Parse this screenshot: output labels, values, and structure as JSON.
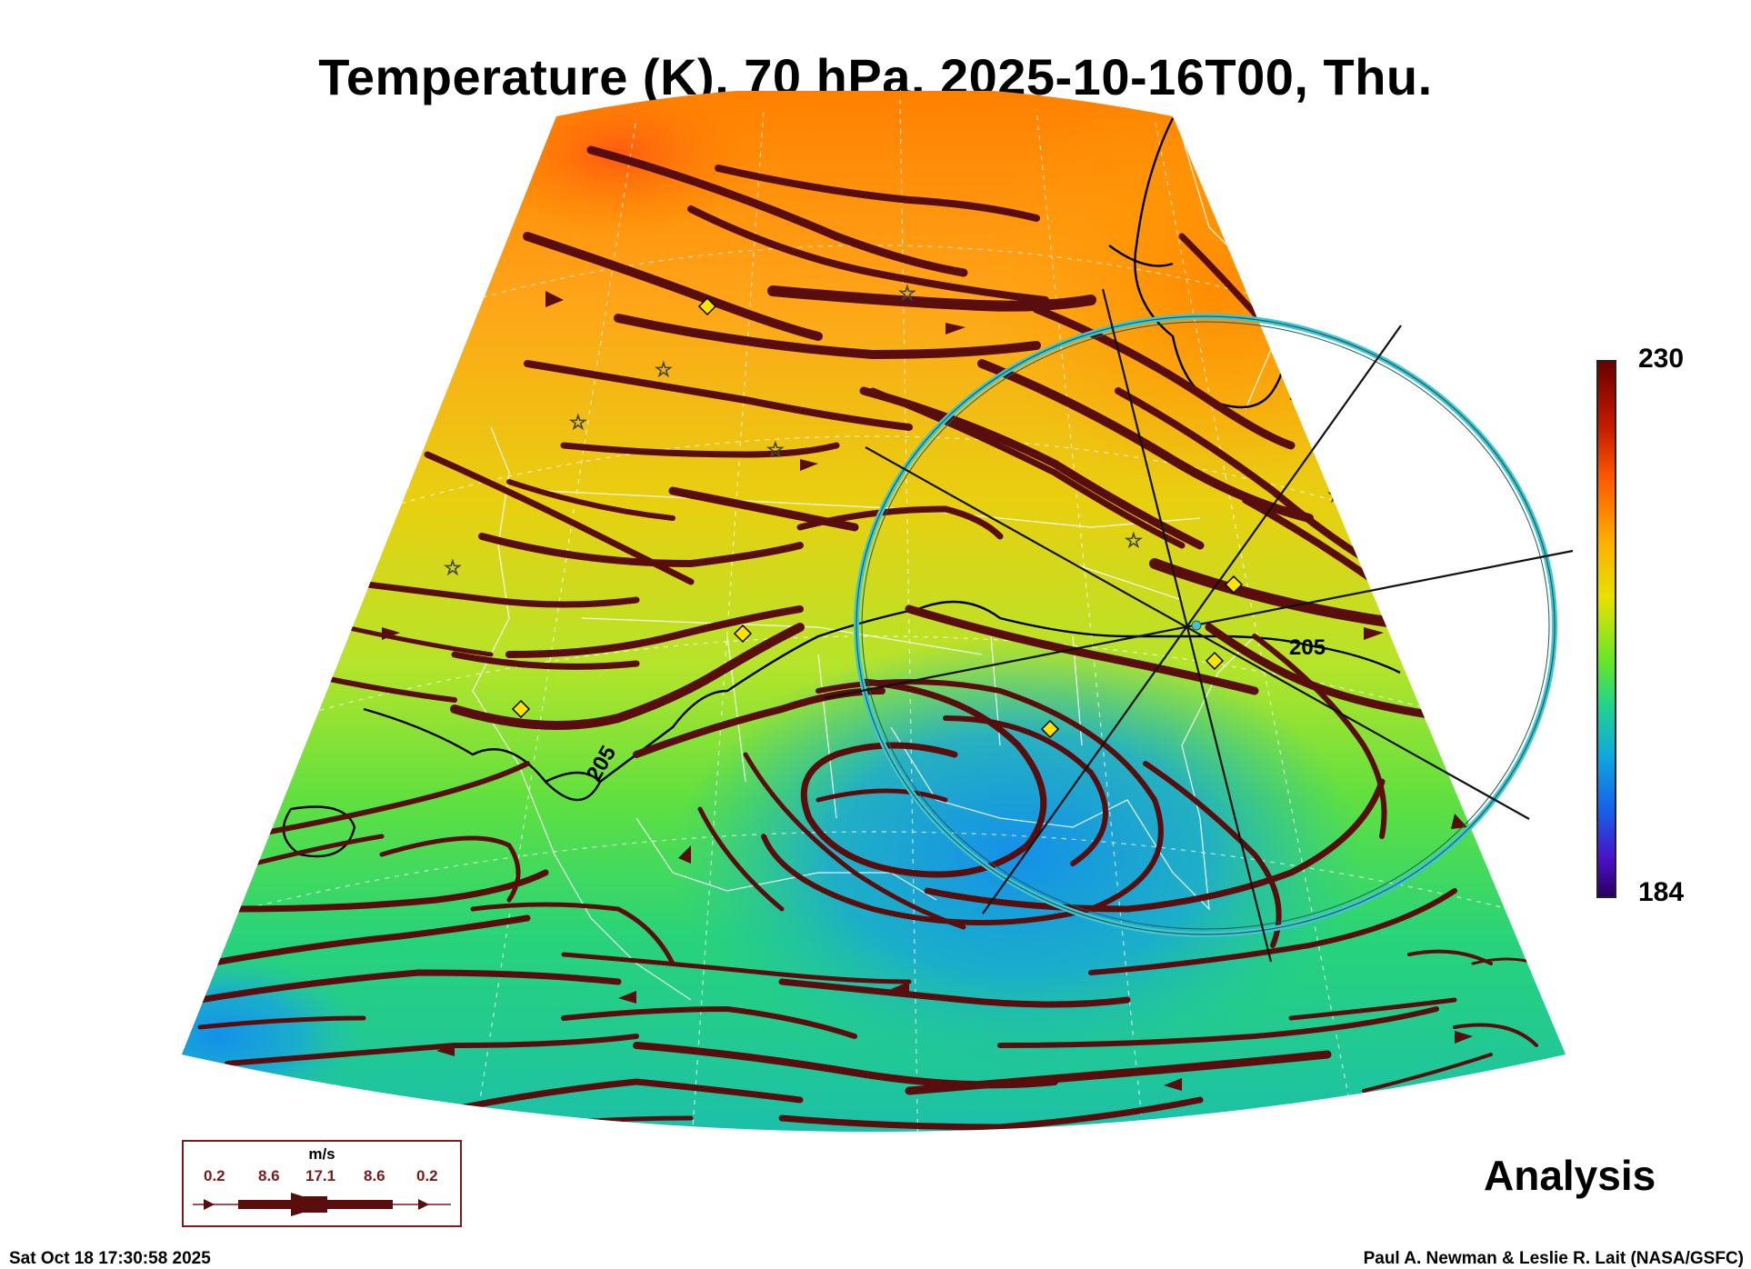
{
  "title": "Temperature (K), 70 hPa, 2025-10-16T00, Thu.",
  "colorbar": {
    "max_label": "230",
    "min_label": "184",
    "range": [
      184,
      230
    ]
  },
  "contour_labels": [
    "205",
    "205"
  ],
  "analysis_label": "Analysis",
  "wind_legend": {
    "unit": "m/s",
    "values": [
      "0.2",
      "8.6",
      "17.1",
      "8.6",
      "0.2"
    ]
  },
  "footer": {
    "timestamp": "Sat Oct 18 17:30:58 2025",
    "credit": "Paul A. Newman & Leslie R. Lait (NASA/GSFC)"
  },
  "colors": {
    "streamline": "#5a0d0d",
    "ring": "#3fc6d0",
    "warm": "#ff8c00",
    "cold": "#1495e0"
  }
}
